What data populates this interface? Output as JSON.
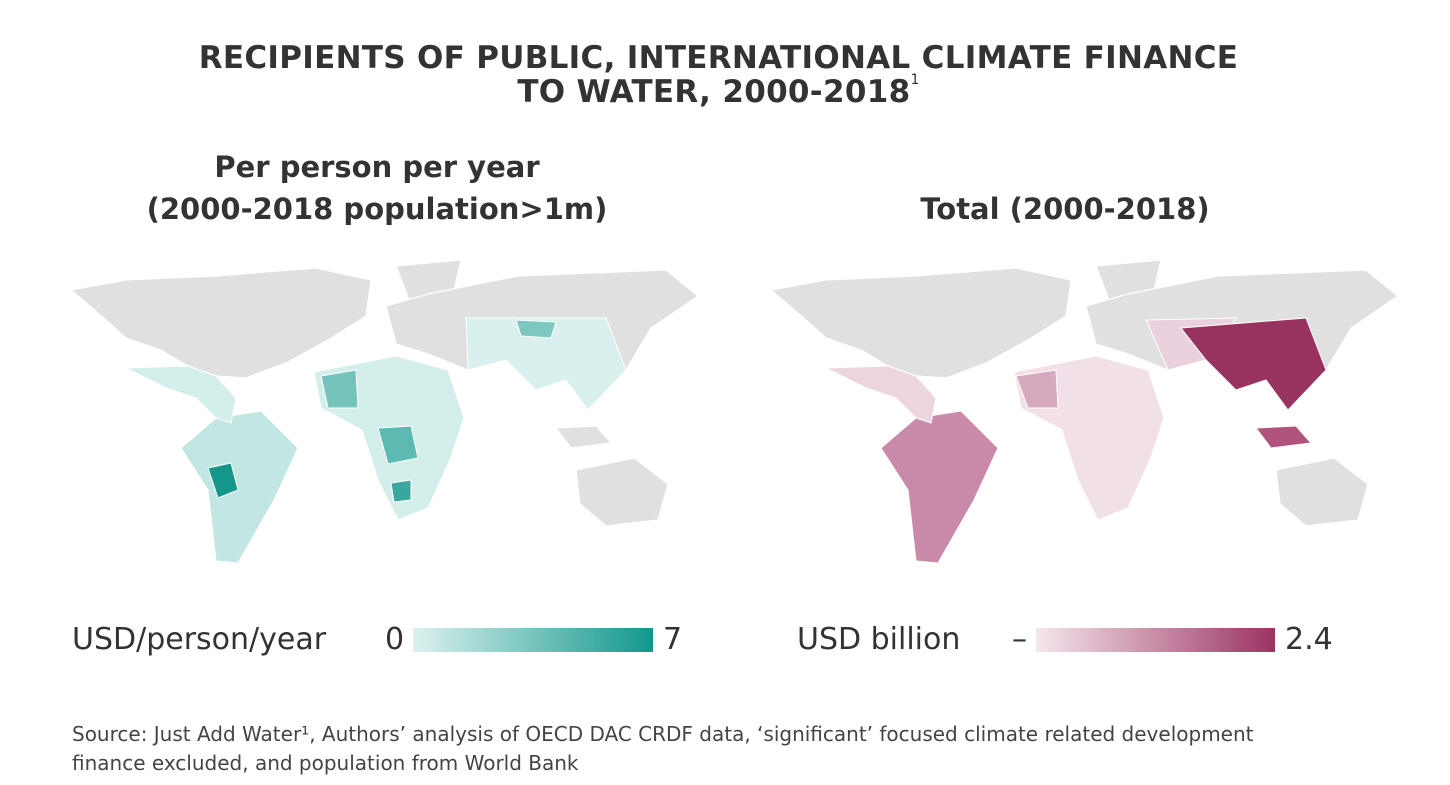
{
  "header": {
    "title_lines": [
      "RECIPIENTS OF PUBLIC, INTERNATIONAL CLIMATE FINANCE",
      "TO WATER, 2000-2018"
    ],
    "footnote_mark": "1"
  },
  "panels": [
    {
      "subtitle_lines": [
        "Per person per year",
        "(2000-2018 population>1m)"
      ],
      "legend": {
        "label": "USD/person/year",
        "min": "0",
        "max": "7",
        "color_low": "#dcf1ef",
        "color_high": "#12978c"
      }
    },
    {
      "subtitle_lines": [
        "Total (2000-2018)"
      ],
      "legend": {
        "label": "USD billion",
        "min": "–",
        "max": "2.4",
        "color_low": "#f5e6ed",
        "color_high": "#9b3462"
      }
    }
  ],
  "source": {
    "lines": [
      "Source: Just Add Water¹, Authors’ analysis of OECD DAC CRDF data, ‘significant’ focused climate related development",
      "finance excluded, and population from World Bank"
    ]
  }
}
